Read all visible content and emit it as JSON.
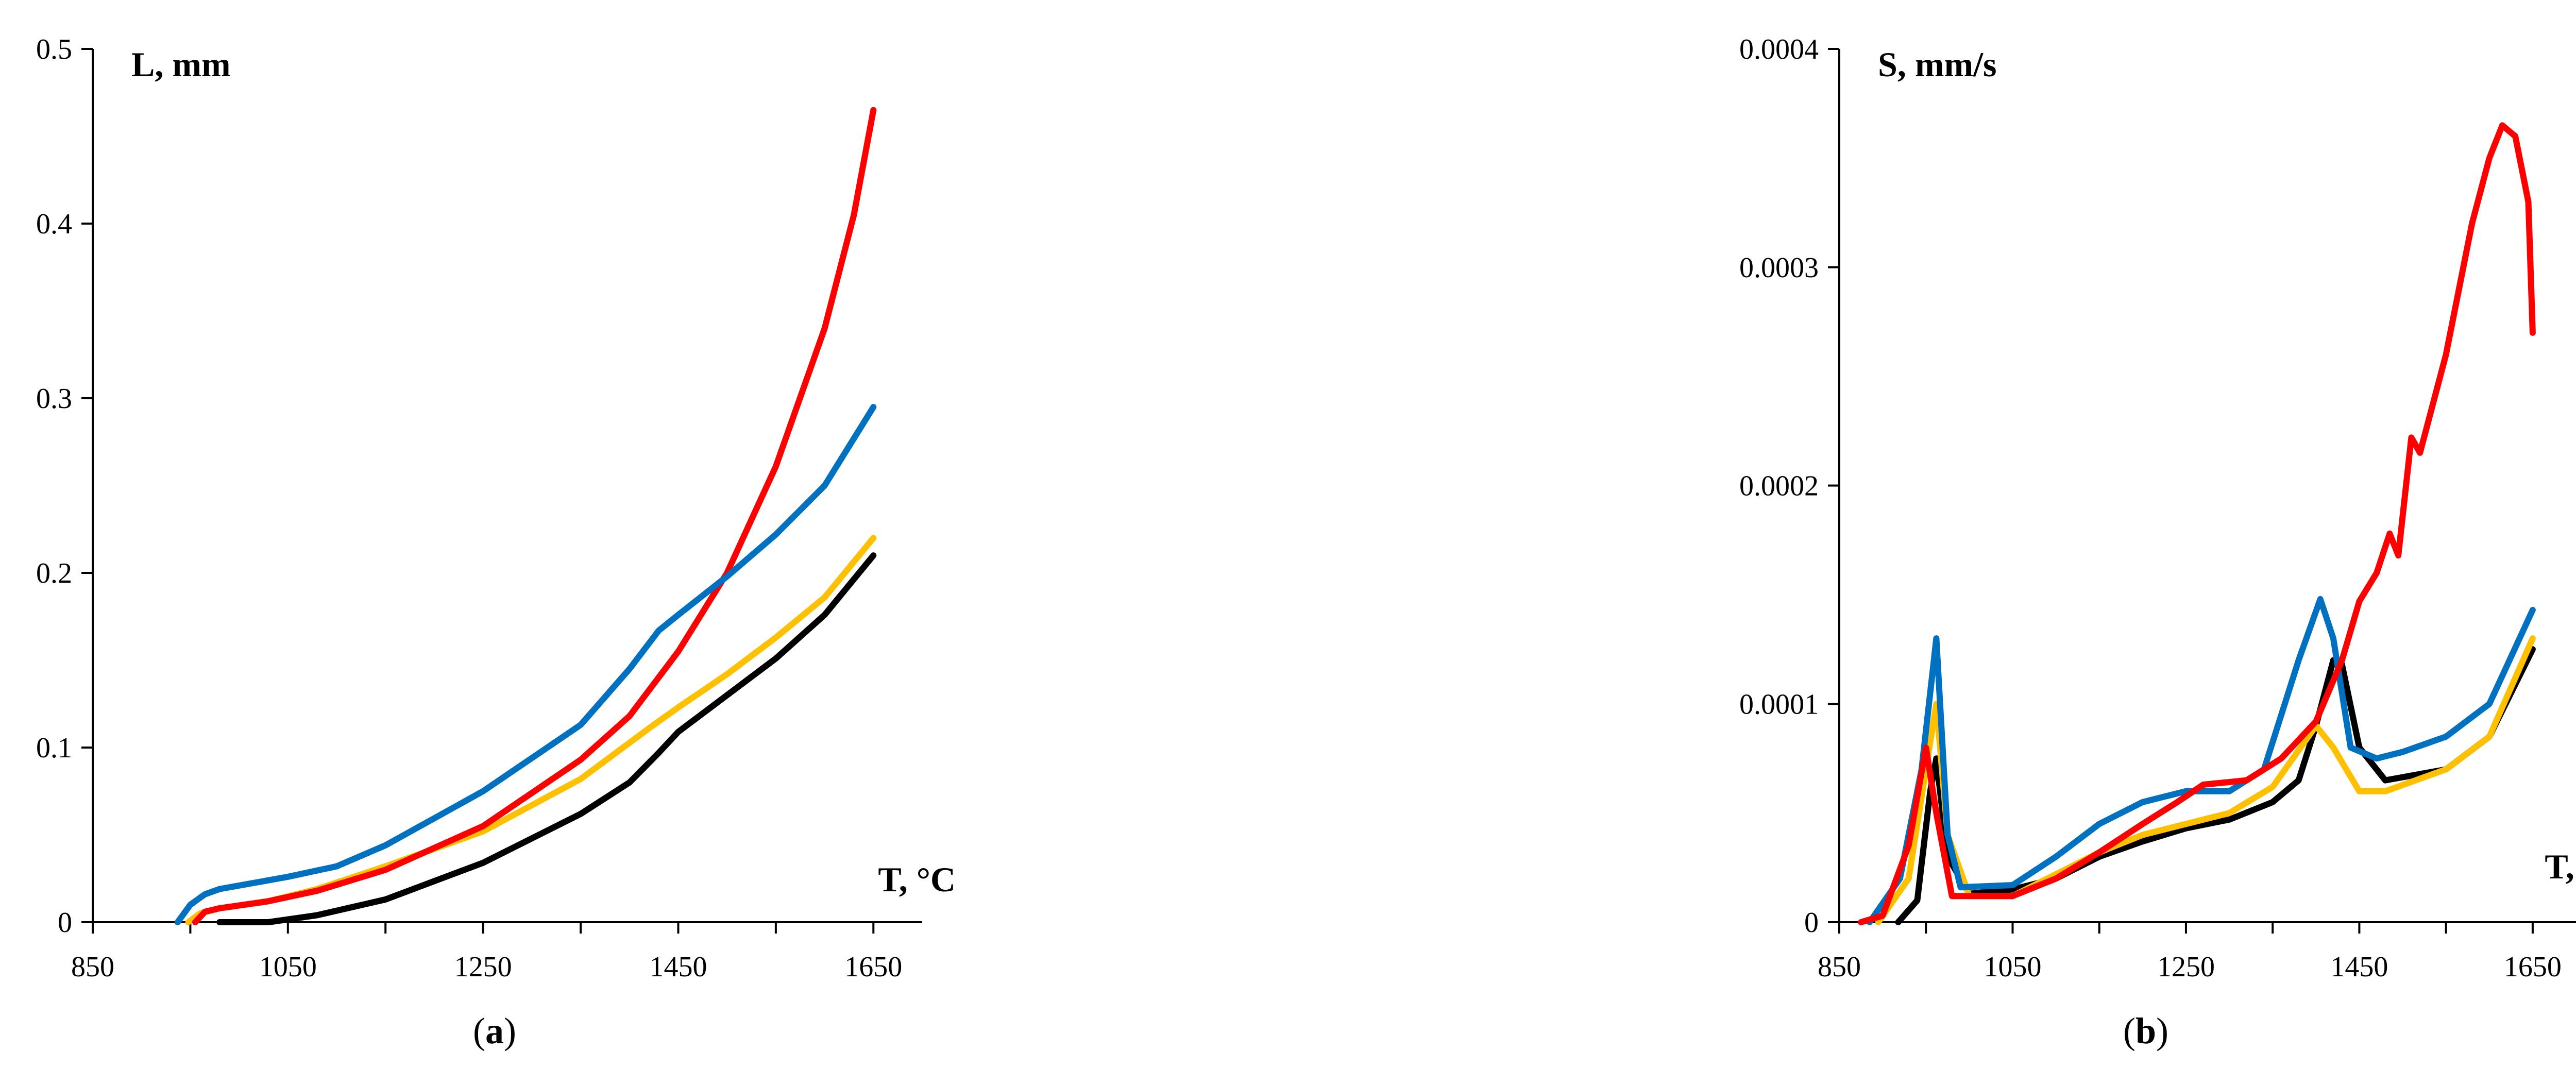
{
  "colors": {
    "black": "#000000",
    "red": "#ff0000",
    "blue": "#0070c0",
    "yellow": "#ffc000"
  },
  "chart_data": [
    {
      "type": "line",
      "caption_open": "(",
      "caption_letter": "a",
      "caption_close": ")",
      "ylabel": "L, mm",
      "xlabel": "T, °C",
      "xlim": [
        850,
        1700
      ],
      "ylim": [
        0,
        0.5
      ],
      "xticks": [
        850,
        1050,
        1250,
        1450,
        1650
      ],
      "xtick_labels": [
        "850",
        "1050",
        "1250",
        "1450",
        "1650"
      ],
      "yticks": [
        0,
        0.1,
        0.2,
        0.3,
        0.4,
        0.5
      ],
      "ytick_labels": [
        "0",
        "0.1",
        "0.2",
        "0.3",
        "0.4",
        "0.5"
      ],
      "series": [
        {
          "color": "#000000",
          "x": [
            980,
            1030,
            1080,
            1150,
            1250,
            1350,
            1400,
            1430,
            1450,
            1500,
            1550,
            1600,
            1650
          ],
          "y": [
            0,
            0,
            0.004,
            0.013,
            0.034,
            0.062,
            0.08,
            0.097,
            0.109,
            0.13,
            0.151,
            0.176,
            0.21
          ]
        },
        {
          "color": "#ffc000",
          "x": [
            948,
            960,
            980,
            1030,
            1080,
            1150,
            1250,
            1350,
            1420,
            1450,
            1500,
            1550,
            1600,
            1650
          ],
          "y": [
            0,
            0.005,
            0.008,
            0.012,
            0.019,
            0.032,
            0.052,
            0.082,
            0.111,
            0.123,
            0.142,
            0.163,
            0.186,
            0.22
          ]
        },
        {
          "color": "#ff0000",
          "x": [
            955,
            965,
            980,
            1030,
            1080,
            1150,
            1250,
            1350,
            1400,
            1450,
            1500,
            1550,
            1600,
            1630,
            1650
          ],
          "y": [
            0,
            0.006,
            0.008,
            0.012,
            0.018,
            0.03,
            0.055,
            0.093,
            0.118,
            0.155,
            0.2,
            0.261,
            0.34,
            0.405,
            0.465
          ]
        },
        {
          "color": "#0070c0",
          "x": [
            937,
            950,
            965,
            980,
            1050,
            1100,
            1150,
            1250,
            1350,
            1400,
            1430,
            1450,
            1500,
            1550,
            1600,
            1650
          ],
          "y": [
            0,
            0.01,
            0.016,
            0.019,
            0.026,
            0.032,
            0.044,
            0.075,
            0.113,
            0.145,
            0.167,
            0.176,
            0.198,
            0.222,
            0.25,
            0.295
          ]
        }
      ]
    },
    {
      "type": "line",
      "caption_open": "(",
      "caption_letter": "b",
      "caption_close": ")",
      "ylabel": "S, mm/s",
      "xlabel": "T, °C",
      "xlim": [
        850,
        1700
      ],
      "ylim": [
        0,
        0.0004
      ],
      "xticks": [
        850,
        1050,
        1250,
        1450,
        1650
      ],
      "xtick_labels": [
        "850",
        "1050",
        "1250",
        "1450",
        "1650"
      ],
      "yticks": [
        0,
        0.0001,
        0.0002,
        0.0003,
        0.0004
      ],
      "ytick_labels": [
        "0",
        "0.0001",
        "0.0002",
        "0.0003",
        "0.0004"
      ],
      "series": [
        {
          "color": "#000000",
          "x": [
            918,
            940,
            955,
            962,
            975,
            1000,
            1050,
            1100,
            1150,
            1200,
            1250,
            1300,
            1350,
            1380,
            1400,
            1420,
            1430,
            1450,
            1480,
            1550,
            1600,
            1650
          ],
          "y": [
            0,
            1e-05,
            6e-05,
            7.5e-05,
            3e-05,
            1.3e-05,
            1.5e-05,
            2e-05,
            3e-05,
            3.7e-05,
            4.3e-05,
            4.7e-05,
            5.5e-05,
            6.5e-05,
            9e-05,
            0.00012,
            0.000118,
            8e-05,
            6.5e-05,
            7e-05,
            8.5e-05,
            0.000125
          ]
        },
        {
          "color": "#ffc000",
          "x": [
            895,
            930,
            950,
            962,
            975,
            1000,
            1050,
            1100,
            1150,
            1200,
            1250,
            1300,
            1350,
            1400,
            1420,
            1450,
            1480,
            1550,
            1600,
            1650
          ],
          "y": [
            0,
            2e-05,
            7e-05,
            0.0001,
            4e-05,
            1.2e-05,
            1.2e-05,
            2.2e-05,
            3.2e-05,
            4e-05,
            4.5e-05,
            5e-05,
            6.2e-05,
            9e-05,
            8e-05,
            6e-05,
            6e-05,
            7e-05,
            8.5e-05,
            0.00013
          ]
        },
        {
          "color": "#0070c0",
          "x": [
            885,
            920,
            945,
            962,
            975,
            990,
            1050,
            1100,
            1150,
            1200,
            1250,
            1300,
            1340,
            1380,
            1405,
            1420,
            1440,
            1470,
            1500,
            1550,
            1600,
            1650
          ],
          "y": [
            0,
            2e-05,
            7e-05,
            0.00013,
            4e-05,
            1.6e-05,
            1.7e-05,
            3e-05,
            4.5e-05,
            5.5e-05,
            6e-05,
            6e-05,
            7e-05,
            0.00012,
            0.000148,
            0.00013,
            8e-05,
            7.5e-05,
            7.8e-05,
            8.5e-05,
            0.0001,
            0.000143
          ]
        },
        {
          "color": "#ff0000",
          "x": [
            875,
            900,
            930,
            950,
            962,
            980,
            1050,
            1100,
            1150,
            1200,
            1240,
            1270,
            1320,
            1360,
            1400,
            1430,
            1450,
            1470,
            1485,
            1495,
            1510,
            1520,
            1550,
            1580,
            1600,
            1615,
            1630,
            1645,
            1650
          ],
          "y": [
            0,
            3e-06,
            3.5e-05,
            8e-05,
            5e-05,
            1.2e-05,
            1.2e-05,
            2e-05,
            3.2e-05,
            4.5e-05,
            5.5e-05,
            6.3e-05,
            6.5e-05,
            7.5e-05,
            9.2e-05,
            0.00012,
            0.000147,
            0.00016,
            0.000178,
            0.000168,
            0.000222,
            0.000215,
            0.00026,
            0.00032,
            0.00035,
            0.000365,
            0.00036,
            0.00033,
            0.00027
          ]
        }
      ]
    }
  ]
}
